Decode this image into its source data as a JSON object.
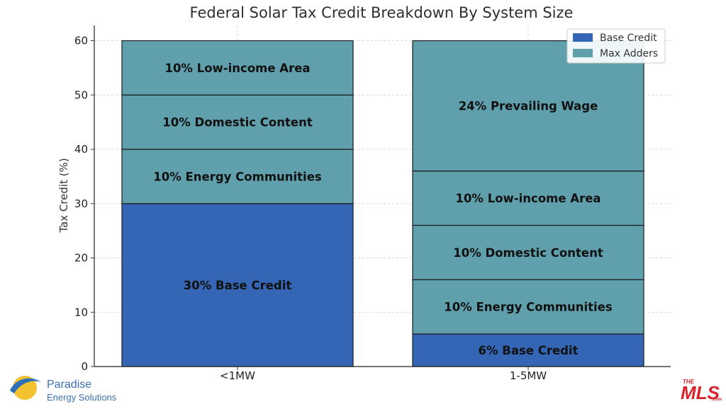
{
  "chart_data": {
    "type": "bar",
    "stacked": true,
    "title": "Federal Solar Tax Credit Breakdown By System Size",
    "xlabel": "",
    "ylabel": "Tax Credit (%)",
    "ylim": [
      0,
      60
    ],
    "yticks": [
      0,
      10,
      20,
      30,
      40,
      50,
      60
    ],
    "grid": true,
    "legend_position": "top-right",
    "categories": [
      "<1MW",
      "1-5MW"
    ],
    "series": [
      {
        "name": "Base Credit",
        "color": "#3466b5"
      },
      {
        "name": "Max Adders",
        "color": "#5fa0ac"
      }
    ],
    "bars": [
      {
        "category": "<1MW",
        "segments": [
          {
            "series": "Base Credit",
            "value": 30,
            "label": "30% Base Credit"
          },
          {
            "series": "Max Adders",
            "value": 10,
            "label": "10% Energy Communities"
          },
          {
            "series": "Max Adders",
            "value": 10,
            "label": "10% Domestic Content"
          },
          {
            "series": "Max Adders",
            "value": 10,
            "label": "10% Low-income Area"
          }
        ]
      },
      {
        "category": "1-5MW",
        "segments": [
          {
            "series": "Base Credit",
            "value": 6,
            "label": "6% Base Credit"
          },
          {
            "series": "Max Adders",
            "value": 10,
            "label": "10% Energy Communities"
          },
          {
            "series": "Max Adders",
            "value": 10,
            "label": "10% Domestic Content"
          },
          {
            "series": "Max Adders",
            "value": 10,
            "label": "10% Low-income Area"
          },
          {
            "series": "Max Adders",
            "value": 24,
            "label": "24% Prevailing Wage"
          }
        ]
      }
    ]
  },
  "branding": {
    "company_name": "Paradise",
    "company_sub": "Energy Solutions",
    "mls_text": "MLS",
    "mls_the": "THE",
    "mls_com": ".com"
  }
}
